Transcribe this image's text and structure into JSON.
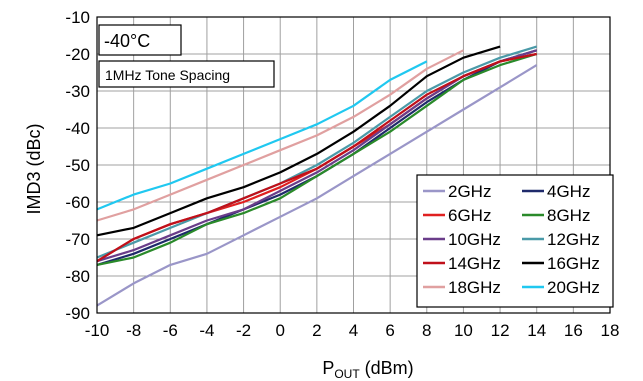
{
  "chart_data": {
    "type": "line",
    "annotations": {
      "temperature": "-40°C",
      "condition": "1MHz Tone Spacing"
    },
    "xlabel_main": "P",
    "xlabel_sub": "OUT",
    "xlabel_unit": " (dBm)",
    "ylabel": "IMD3 (dBc)",
    "xlim": [
      -10,
      18
    ],
    "ylim": [
      -90,
      -10
    ],
    "xticks": [
      "-10",
      "-8",
      "-6",
      "-4",
      "-2",
      "0",
      "2",
      "4",
      "6",
      "8",
      "10",
      "12",
      "14",
      "16",
      "18"
    ],
    "yticks": [
      "-10",
      "-20",
      "-30",
      "-40",
      "-50",
      "-60",
      "-70",
      "-80",
      "-90"
    ],
    "grid": true,
    "legend_position": "bottom-right",
    "series": [
      {
        "name": "2GHz",
        "color": "#9a96c8",
        "x": [
          -10,
          -8,
          -6,
          -4,
          -2,
          0,
          2,
          4,
          6,
          8,
          10,
          12,
          14
        ],
        "y": [
          -88,
          -82,
          -77,
          -74,
          -69,
          -64,
          -59,
          -53,
          -47,
          -41,
          -35,
          -29,
          -23
        ]
      },
      {
        "name": "4GHz",
        "color": "#1f2a6b",
        "x": [
          -10,
          -8,
          -6,
          -4,
          -2,
          0,
          2,
          4,
          6,
          8,
          10,
          12,
          14
        ],
        "y": [
          -77,
          -74,
          -70,
          -66,
          -62,
          -58,
          -53,
          -47,
          -40,
          -33,
          -27,
          -22,
          -19
        ]
      },
      {
        "name": "6GHz",
        "color": "#e02020",
        "x": [
          -10,
          -8,
          -6,
          -4,
          -2,
          0,
          2,
          4,
          6,
          8,
          10,
          12,
          14
        ],
        "y": [
          -76,
          -70,
          -66,
          -63,
          -60,
          -56,
          -51,
          -45,
          -39,
          -32,
          -26,
          -22,
          -20
        ]
      },
      {
        "name": "8GHz",
        "color": "#2a8a2a",
        "x": [
          -10,
          -8,
          -6,
          -4,
          -2,
          0,
          2,
          4,
          6,
          8,
          10,
          12,
          14
        ],
        "y": [
          -77,
          -75,
          -71,
          -66,
          -63,
          -59,
          -53,
          -47,
          -41,
          -34,
          -27,
          -23,
          -20
        ]
      },
      {
        "name": "10GHz",
        "color": "#6a3d8a",
        "x": [
          -10,
          -8,
          -6,
          -4,
          -2,
          0,
          2,
          4,
          6,
          8,
          10,
          12,
          14
        ],
        "y": [
          -76,
          -73,
          -69,
          -65,
          -62,
          -57,
          -52,
          -46,
          -39,
          -32,
          -26,
          -22,
          -19
        ]
      },
      {
        "name": "12GHz",
        "color": "#4a9aa8",
        "x": [
          -10,
          -8,
          -6,
          -4,
          -2,
          0,
          2,
          4,
          6,
          8,
          10,
          12,
          14
        ],
        "y": [
          -75,
          -71,
          -67,
          -63,
          -59,
          -55,
          -50,
          -44,
          -37,
          -30,
          -25,
          -21,
          -18
        ]
      },
      {
        "name": "14GHz",
        "color": "#c0101a",
        "x": [
          -10,
          -8,
          -6,
          -4,
          -2,
          0,
          2,
          4,
          6,
          8,
          10,
          12,
          14
        ],
        "y": [
          -76,
          -70,
          -66,
          -63,
          -59,
          -55,
          -51,
          -45,
          -38,
          -31,
          -26,
          -22,
          -20
        ]
      },
      {
        "name": "16GHz",
        "color": "#000000",
        "x": [
          -10,
          -8,
          -6,
          -4,
          -2,
          0,
          2,
          4,
          6,
          8,
          10,
          12
        ],
        "y": [
          -69,
          -67,
          -63,
          -59,
          -56,
          -52,
          -47,
          -41,
          -34,
          -26,
          -21,
          -18
        ]
      },
      {
        "name": "18GHz",
        "color": "#e0a0a0",
        "x": [
          -10,
          -8,
          -6,
          -4,
          -2,
          0,
          2,
          4,
          6,
          8,
          10
        ],
        "y": [
          -65,
          -62,
          -58,
          -54,
          -50,
          -46,
          -42,
          -37,
          -31,
          -24,
          -19
        ]
      },
      {
        "name": "20GHz",
        "color": "#20c8f0",
        "x": [
          -10,
          -8,
          -6,
          -4,
          -2,
          0,
          2,
          4,
          6,
          8
        ],
        "y": [
          -62,
          -58,
          -55,
          -51,
          -47,
          -43,
          -39,
          -34,
          -27,
          -22
        ]
      }
    ]
  }
}
